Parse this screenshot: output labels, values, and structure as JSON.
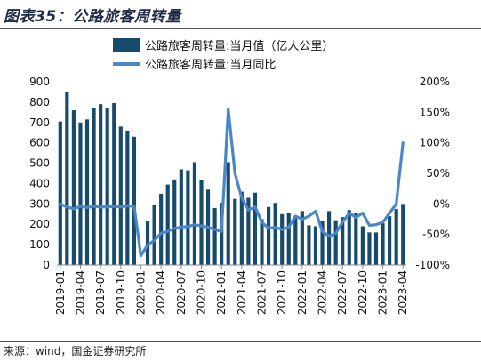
{
  "header": {
    "title": "图表35：公路旅客周转量"
  },
  "footer": {
    "source": "来源：wind，国金证券研究所"
  },
  "colors": {
    "bar": "#174b6b",
    "line": "#4a86c8"
  },
  "chart_data": {
    "type": "bar",
    "title": "图表35：公路旅客周转量",
    "legend_placement": "top",
    "grid": false,
    "xlabel": "",
    "ylabel": "",
    "ylim": [
      0,
      900
    ],
    "y2lim": [
      -100,
      200
    ],
    "y_ticks": [
      "0",
      "100",
      "200",
      "300",
      "400",
      "500",
      "600",
      "700",
      "800",
      "900"
    ],
    "y2_ticks": [
      "-100%",
      "-50%",
      "0%",
      "50%",
      "100%",
      "150%",
      "200%"
    ],
    "x_tick_labels": [
      "2019-01",
      "2019-04",
      "2019-07",
      "2019-10",
      "2020-01",
      "2020-04",
      "2020-07",
      "2020-10",
      "2021-01",
      "2021-04",
      "2021-07",
      "2021-10",
      "2022-01",
      "2022-04",
      "2022-07",
      "2022-10",
      "2023-01",
      "2023-04"
    ],
    "categories": [
      "2019-01",
      "2019-02",
      "2019-03",
      "2019-04",
      "2019-05",
      "2019-06",
      "2019-07",
      "2019-08",
      "2019-09",
      "2019-10",
      "2019-11",
      "2019-12",
      "2020-01",
      "2020-02",
      "2020-03",
      "2020-04",
      "2020-05",
      "2020-06",
      "2020-07",
      "2020-08",
      "2020-09",
      "2020-10",
      "2020-11",
      "2020-12",
      "2021-01",
      "2021-02",
      "2021-03",
      "2021-04",
      "2021-05",
      "2021-06",
      "2021-07",
      "2021-08",
      "2021-09",
      "2021-10",
      "2021-11",
      "2021-12",
      "2022-01",
      "2022-02",
      "2022-03",
      "2022-04",
      "2022-05",
      "2022-06",
      "2022-07",
      "2022-08",
      "2022-09",
      "2022-10",
      "2022-11",
      "2022-12",
      "2023-01",
      "2023-02",
      "2023-03",
      "2023-04"
    ],
    "series": [
      {
        "name": "公路旅客周转量:当月值（亿人公里）",
        "kind": "bar",
        "axis": "left",
        "values": [
          705,
          850,
          760,
          700,
          715,
          770,
          790,
          770,
          795,
          680,
          660,
          630,
          0,
          215,
          295,
          350,
          395,
          420,
          470,
          465,
          505,
          415,
          370,
          280,
          305,
          505,
          325,
          360,
          330,
          355,
          225,
          285,
          305,
          250,
          255,
          230,
          265,
          195,
          190,
          215,
          265,
          220,
          235,
          270,
          255,
          190,
          160,
          160,
          205,
          240,
          275,
          300
        ]
      },
      {
        "name": "公路旅客周转量:当月同比",
        "kind": "line",
        "axis": "right",
        "values": [
          0,
          -5,
          -8,
          -4,
          -6,
          -4,
          -5,
          -5,
          -4,
          -5,
          -3,
          -4,
          -85,
          -67,
          -60,
          -48,
          -45,
          -40,
          -38,
          -37,
          -34,
          -36,
          -38,
          -42,
          -45,
          155,
          50,
          10,
          -10,
          -5,
          -30,
          -40,
          -38,
          -42,
          -38,
          -20,
          -25,
          -20,
          -12,
          -45,
          -53,
          -48,
          -30,
          -15,
          -22,
          -15,
          -35,
          -34,
          -30,
          -15,
          0,
          100
        ]
      }
    ]
  }
}
